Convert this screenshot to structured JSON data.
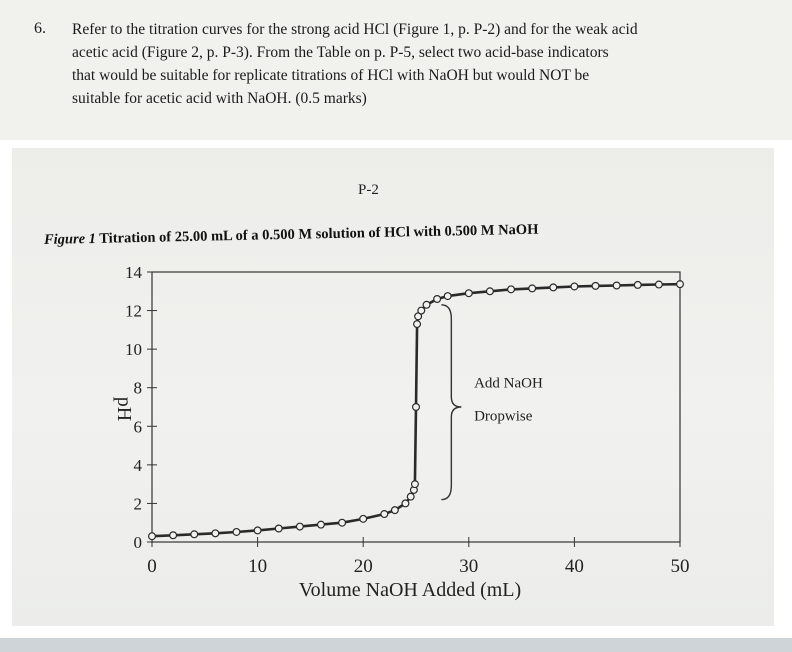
{
  "question": {
    "number": "6.",
    "lines": [
      "Refer to the titration curves for the strong acid HCl (Figure 1, p. P-2) and for the weak acid",
      "acetic acid (Figure 2, p. P-3).   From the Table on p. P-5, select two acid-base indicators",
      "that would be suitable for replicate titrations of HCl with NaOH but would NOT be",
      "suitable for acetic acid with NaOH. (0.5 marks)"
    ]
  },
  "page_label": "P-2",
  "figure": {
    "label": "Figure 1",
    "title": "Titration of 25.00 mL of a 0.500 M solution of HCl with 0.500 M NaOH"
  },
  "chart_data": {
    "type": "line",
    "xlabel": "Volume NaOH Added (mL)",
    "ylabel": "pH",
    "xlim": [
      0,
      50
    ],
    "ylim": [
      0,
      14
    ],
    "xticks": [
      "0",
      "10",
      "20",
      "30",
      "40",
      "50"
    ],
    "yticks": [
      "0",
      "2",
      "4",
      "6",
      "8",
      "10",
      "12",
      "14"
    ],
    "series": [
      {
        "x": [
          0,
          2,
          4,
          6,
          8,
          10,
          12,
          14,
          16,
          18,
          20,
          22,
          23,
          24,
          24.5,
          24.8,
          24.9,
          25,
          25.1,
          25.2,
          25.5,
          26,
          27,
          28,
          30,
          32,
          34,
          36,
          38,
          40,
          42,
          44,
          46,
          48,
          50
        ],
        "y": [
          0.3,
          0.35,
          0.4,
          0.45,
          0.52,
          0.6,
          0.7,
          0.8,
          0.9,
          1.0,
          1.2,
          1.45,
          1.65,
          2.0,
          2.35,
          2.7,
          3.0,
          7.0,
          11.3,
          11.7,
          12.0,
          12.3,
          12.6,
          12.75,
          12.9,
          13.0,
          13.1,
          13.15,
          13.2,
          13.25,
          13.28,
          13.3,
          13.33,
          13.35,
          13.37
        ]
      }
    ],
    "annotations": [
      {
        "text": "Add NaOH",
        "x": 30.5,
        "y": 8
      },
      {
        "text": "Dropwise",
        "x": 30.5,
        "y": 6.3
      }
    ],
    "grid": false
  }
}
